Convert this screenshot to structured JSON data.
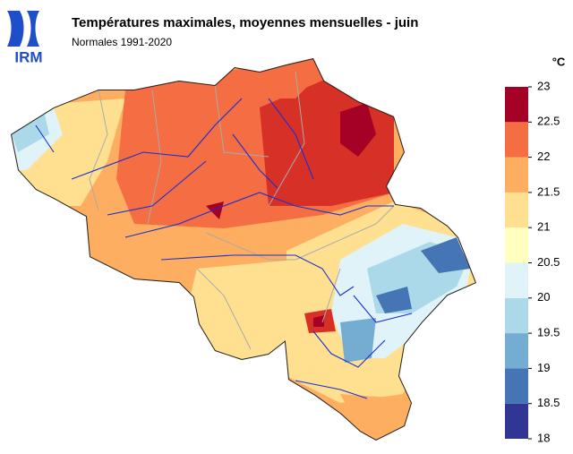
{
  "header": {
    "logo": "IRM",
    "title": "Températures maximales, moyennes mensuelles - juin",
    "subtitle": "Normales 1991-2020"
  },
  "legend": {
    "unit": "°C",
    "ticks": [
      18,
      18.5,
      19,
      19.5,
      20,
      20.5,
      21,
      21.5,
      22,
      22.5,
      23
    ],
    "colors": [
      "#313695",
      "#4575b4",
      "#74add1",
      "#abd9e9",
      "#e0f3f8",
      "#ffffbf",
      "#fee090",
      "#fdae61",
      "#f46d43",
      "#d73027"
    ],
    "top_color": "#a50026"
  }
}
